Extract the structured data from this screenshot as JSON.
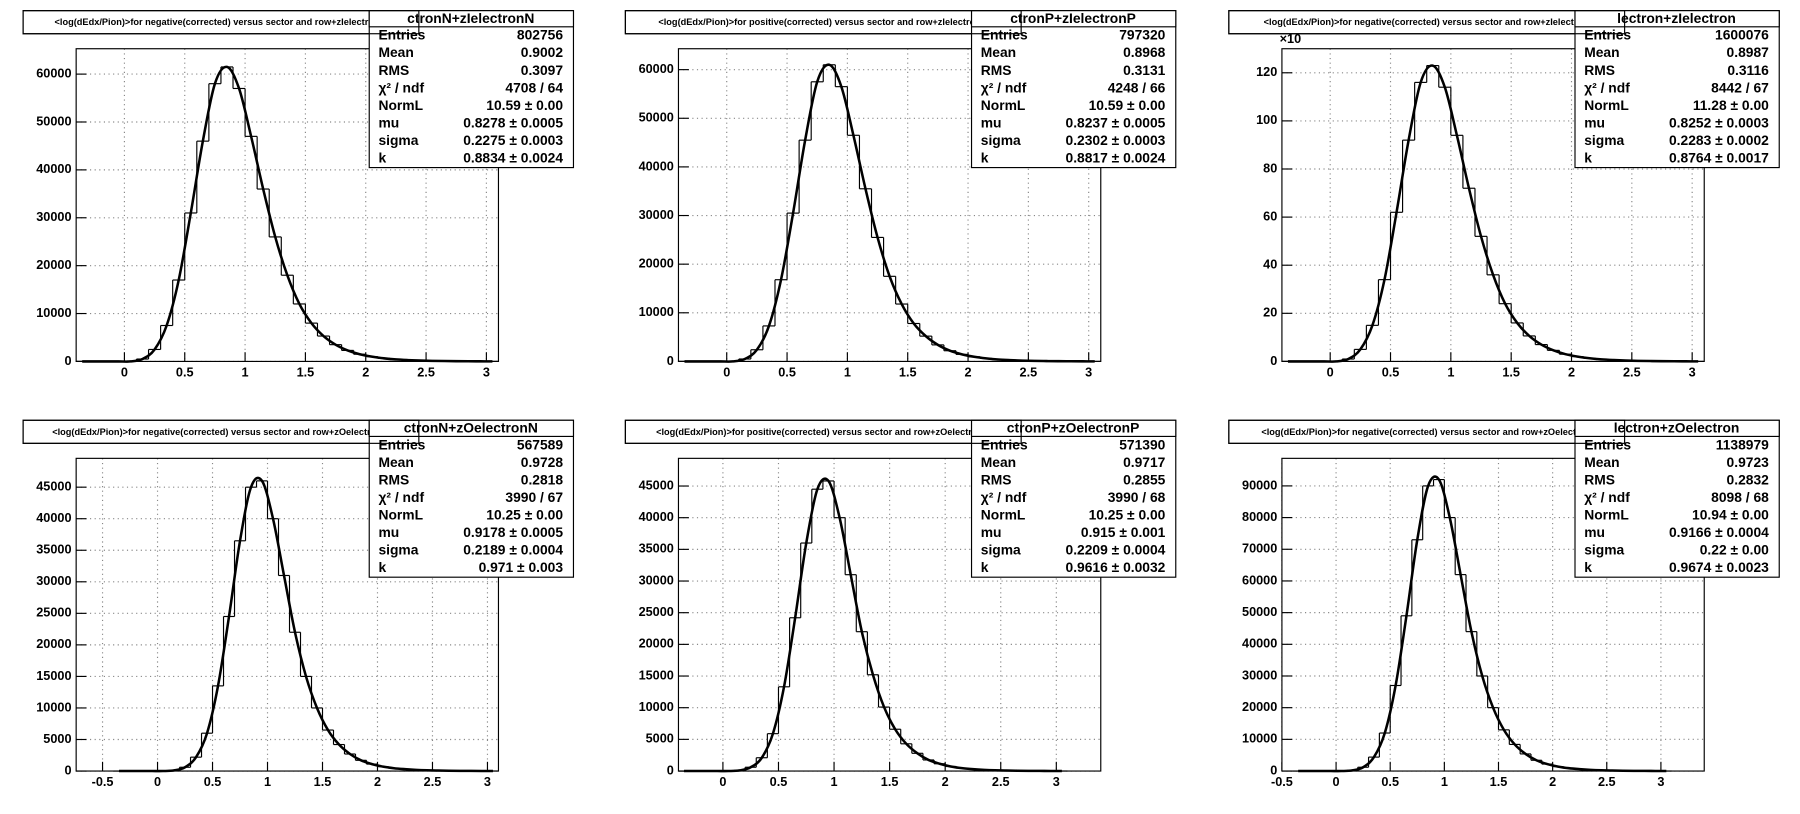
{
  "stat_labels": [
    "Entries",
    "Mean",
    "RMS",
    "χ² / ndf",
    "NormL",
    "mu",
    "sigma",
    "k"
  ],
  "chart_data": [
    {
      "type": "histogram",
      "title": "<log(dEdx/Pion)>for negative(corrected) versus sector and row+zIelectronN",
      "stats_title": "ctronN+zIelectronN",
      "stats": [
        "802756",
        "0.9002",
        "0.3097",
        "4708 / 64",
        "10.59 ± 0.00",
        "0.8278 ± 0.0005",
        "0.2275 ± 0.0003",
        "0.8834 ± 0.0024"
      ],
      "bins": [
        -0.4,
        -0.3,
        -0.2,
        -0.1,
        0,
        0.1,
        0.2,
        0.3,
        0.4,
        0.5,
        0.6,
        0.7,
        0.8,
        0.9,
        1,
        1.1,
        1.2,
        1.3,
        1.4,
        1.5,
        1.6,
        1.7,
        1.8,
        1.9,
        2,
        2.1,
        2.2,
        2.3,
        2.4,
        2.5,
        2.6,
        2.7,
        2.8,
        2.9,
        3,
        3.1
      ],
      "values": [
        0,
        0,
        0,
        0,
        0,
        500,
        2500,
        7500,
        17000,
        31000,
        46000,
        58000,
        61500,
        57000,
        47000,
        36000,
        26000,
        18000,
        12000,
        8000,
        5300,
        3500,
        2300,
        1500,
        1000,
        650,
        420,
        280,
        180,
        120,
        80,
        50,
        30,
        20,
        10
      ],
      "color": "#000000",
      "grid": true,
      "xlim": [
        -0.4,
        3.1
      ],
      "ylim": [
        0,
        65300
      ],
      "xticks": [
        0,
        0.5,
        1,
        1.5,
        2,
        2.5,
        3
      ],
      "yticks": [
        0,
        10000,
        20000,
        30000,
        40000,
        50000,
        60000
      ]
    },
    {
      "type": "histogram",
      "title": "<log(dEdx/Pion)>for positive(corrected) versus sector and row+zIelectronP",
      "stats_title": "ctronP+zIelectronP",
      "stats": [
        "797320",
        "0.8968",
        "0.3131",
        "4248 / 66",
        "10.59 ± 0.00",
        "0.8237 ± 0.0005",
        "0.2302 ± 0.0003",
        "0.8817 ± 0.0024"
      ],
      "bins": [
        -0.4,
        -0.3,
        -0.2,
        -0.1,
        0,
        0.1,
        0.2,
        0.3,
        0.4,
        0.5,
        0.6,
        0.7,
        0.8,
        0.9,
        1,
        1.1,
        1.2,
        1.3,
        1.4,
        1.5,
        1.6,
        1.7,
        1.8,
        1.9,
        2,
        2.1,
        2.2,
        2.3,
        2.4,
        2.5,
        2.6,
        2.7,
        2.8,
        2.9,
        3,
        3.1
      ],
      "values": [
        0,
        0,
        0,
        0,
        0,
        500,
        2400,
        7300,
        16800,
        30500,
        45500,
        57500,
        61000,
        56500,
        46500,
        35500,
        25500,
        17500,
        11800,
        7800,
        5200,
        3400,
        2200,
        1450,
        950,
        620,
        400,
        270,
        170,
        110,
        75,
        45,
        30,
        20,
        10
      ],
      "color": "#000000",
      "grid": true,
      "xlim": [
        -0.4,
        3.1
      ],
      "ylim": [
        0,
        64300
      ],
      "xticks": [
        0,
        0.5,
        1,
        1.5,
        2,
        2.5,
        3
      ],
      "yticks": [
        0,
        10000,
        20000,
        30000,
        40000,
        50000,
        60000
      ]
    },
    {
      "type": "histogram",
      "title": "<log(dEdx/Pion)>for negative(corrected) versus sector and row+zIelectron",
      "stats_title": "lectron+zIelectron",
      "stats": [
        "1600076",
        "0.8987",
        "0.3116",
        "8442 / 67",
        "11.28 ± 0.00",
        "0.8252 ± 0.0003",
        "0.2283 ± 0.0002",
        "0.8764 ± 0.0017"
      ],
      "y_multiplier": "×10",
      "bins": [
        -0.4,
        -0.3,
        -0.2,
        -0.1,
        0,
        0.1,
        0.2,
        0.3,
        0.4,
        0.5,
        0.6,
        0.7,
        0.8,
        0.9,
        1,
        1.1,
        1.2,
        1.3,
        1.4,
        1.5,
        1.6,
        1.7,
        1.8,
        1.9,
        2,
        2.1,
        2.2,
        2.3,
        2.4,
        2.5,
        2.6,
        2.7,
        2.8,
        2.9,
        3,
        3.1
      ],
      "values": [
        0,
        0,
        0,
        0,
        0,
        1,
        5,
        15,
        34,
        62,
        92,
        116,
        123,
        114,
        94,
        72,
        52,
        36,
        24,
        16,
        10.6,
        7,
        4.6,
        3,
        2,
        1.3,
        0.84,
        0.56,
        0.36,
        0.24,
        0.16,
        0.1,
        0.06,
        0.04,
        0.02
      ],
      "color": "#000000",
      "grid": true,
      "xlim": [
        -0.4,
        3.1
      ],
      "ylim": [
        0,
        130
      ],
      "xticks": [
        0,
        0.5,
        1,
        1.5,
        2,
        2.5,
        3
      ],
      "yticks": [
        0,
        20,
        40,
        60,
        80,
        100,
        120
      ]
    },
    {
      "type": "histogram",
      "title": "<log(dEdx/Pion)>for negative(corrected) versus sector and row+zOelectronN",
      "stats_title": "ctronN+zOelectronN",
      "stats": [
        "567589",
        "0.9728",
        "0.2818",
        "3990 / 67",
        "10.25 ± 0.00",
        "0.9178 ± 0.0005",
        "0.2189 ± 0.0004",
        "0.971 ± 0.003"
      ],
      "bins": [
        -0.4,
        -0.3,
        -0.2,
        -0.1,
        0,
        0.1,
        0.2,
        0.3,
        0.4,
        0.5,
        0.6,
        0.7,
        0.8,
        0.9,
        1,
        1.1,
        1.2,
        1.3,
        1.4,
        1.5,
        1.6,
        1.7,
        1.8,
        1.9,
        2,
        2.1,
        2.2,
        2.3,
        2.4,
        2.5,
        2.6,
        2.7,
        2.8,
        2.9,
        3,
        3.1
      ],
      "values": [
        0,
        0,
        0,
        0,
        0,
        100,
        600,
        2200,
        6000,
        13500,
        24500,
        36500,
        45000,
        46000,
        40000,
        31000,
        22000,
        15000,
        10000,
        6500,
        4200,
        2700,
        1700,
        1100,
        700,
        450,
        300,
        190,
        120,
        80,
        50,
        30,
        20,
        10,
        5
      ],
      "color": "#000000",
      "grid": true,
      "xlim": [
        -0.74,
        3.1
      ],
      "ylim": [
        0,
        49570
      ],
      "xticks": [
        -0.5,
        0,
        0.5,
        1,
        1.5,
        2,
        2.5,
        3
      ],
      "yticks": [
        0,
        5000,
        10000,
        15000,
        20000,
        25000,
        30000,
        35000,
        40000,
        45000
      ]
    },
    {
      "type": "histogram",
      "title": "<log(dEdx/Pion)>for positive(corrected) versus sector and row+zOelectronP",
      "stats_title": "ctronP+zOelectronP",
      "stats": [
        "571390",
        "0.9717",
        "0.2855",
        "3990 / 68",
        "10.25 ± 0.00",
        "0.915 ± 0.001",
        "0.2209 ± 0.0004",
        "0.9616 ± 0.0032"
      ],
      "bins": [
        -0.4,
        -0.3,
        -0.2,
        -0.1,
        0,
        0.1,
        0.2,
        0.3,
        0.4,
        0.5,
        0.6,
        0.7,
        0.8,
        0.9,
        1,
        1.1,
        1.2,
        1.3,
        1.4,
        1.5,
        1.6,
        1.7,
        1.8,
        1.9,
        2,
        2.1,
        2.2,
        2.3,
        2.4,
        2.5,
        2.6,
        2.7,
        2.8,
        2.9,
        3,
        3.1
      ],
      "values": [
        0,
        0,
        0,
        0,
        0,
        100,
        600,
        2100,
        5900,
        13300,
        24200,
        36000,
        44500,
        45800,
        40000,
        31000,
        22000,
        15200,
        10100,
        6600,
        4300,
        2800,
        1750,
        1150,
        720,
        460,
        300,
        190,
        120,
        80,
        50,
        30,
        20,
        10,
        5
      ],
      "color": "#000000",
      "grid": true,
      "xlim": [
        -0.4,
        3.4
      ],
      "ylim": [
        0,
        49370
      ],
      "xticks": [
        0,
        0.5,
        1,
        1.5,
        2,
        2.5,
        3
      ],
      "yticks": [
        0,
        5000,
        10000,
        15000,
        20000,
        25000,
        30000,
        35000,
        40000,
        45000
      ]
    },
    {
      "type": "histogram",
      "title": "<log(dEdx/Pion)>for negative(corrected) versus sector and row+zOelectron",
      "stats_title": "lectron+zOelectron",
      "stats": [
        "1138979",
        "0.9723",
        "0.2832",
        "8098 / 68",
        "10.94 ± 0.00",
        "0.9166 ± 0.0004",
        "0.22 ± 0.00",
        "0.9674 ± 0.0023"
      ],
      "bins": [
        -0.4,
        -0.3,
        -0.2,
        -0.1,
        0,
        0.1,
        0.2,
        0.3,
        0.4,
        0.5,
        0.6,
        0.7,
        0.8,
        0.9,
        1,
        1.1,
        1.2,
        1.3,
        1.4,
        1.5,
        1.6,
        1.7,
        1.8,
        1.9,
        2,
        2.1,
        2.2,
        2.3,
        2.4,
        2.5,
        2.6,
        2.7,
        2.8,
        2.9,
        3,
        3.1
      ],
      "values": [
        0,
        0,
        0,
        0,
        0,
        200,
        1200,
        4400,
        12000,
        27000,
        49000,
        73000,
        90000,
        92000,
        80000,
        62000,
        44000,
        30000,
        20000,
        13000,
        8400,
        5400,
        3400,
        2200,
        1400,
        900,
        600,
        380,
        240,
        160,
        100,
        60,
        40,
        20,
        10
      ],
      "color": "#000000",
      "grid": true,
      "xlim": [
        -0.5,
        3.4
      ],
      "ylim": [
        0,
        98700
      ],
      "xticks": [
        -0.5,
        0,
        0.5,
        1,
        1.5,
        2,
        2.5,
        3
      ],
      "yticks": [
        0,
        10000,
        20000,
        30000,
        40000,
        50000,
        60000,
        70000,
        80000,
        90000
      ]
    }
  ]
}
